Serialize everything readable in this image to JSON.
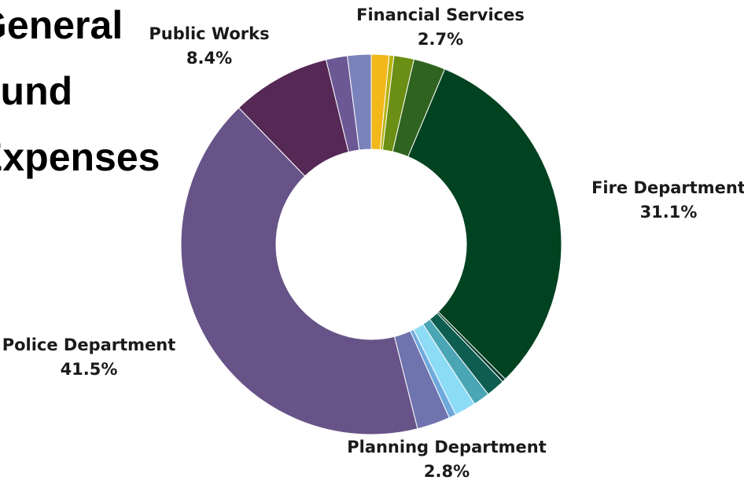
{
  "title": {
    "line1": "General",
    "line2": "Fund",
    "line3": "Expenses"
  },
  "chart_data": {
    "type": "pie",
    "title": "General Fund Expenses",
    "donut": true,
    "start_angle_deg": 0,
    "slices": [
      {
        "key": "s1",
        "label": "",
        "value": 1.5,
        "color": "#f2b81a"
      },
      {
        "key": "s2",
        "label": "",
        "value": 0.4,
        "color": "#b7b414"
      },
      {
        "key": "s3",
        "label": "",
        "value": 1.7,
        "color": "#6b8e14"
      },
      {
        "key": "financial",
        "label": "Financial Services",
        "value": 2.7,
        "color": "#2f6420"
      },
      {
        "key": "fire",
        "label": "Fire Department",
        "value": 31.1,
        "color": "#014220"
      },
      {
        "key": "s6",
        "label": "",
        "value": 0.3,
        "color": "#0a3d30"
      },
      {
        "key": "s7",
        "label": "",
        "value": 1.6,
        "color": "#0d5e50"
      },
      {
        "key": "s8",
        "label": "",
        "value": 1.4,
        "color": "#4aa6b4"
      },
      {
        "key": "s9",
        "label": "",
        "value": 1.8,
        "color": "#8ddcf6"
      },
      {
        "key": "s10",
        "label": "",
        "value": 0.6,
        "color": "#6fa8dc"
      },
      {
        "key": "planning",
        "label": "Planning Department",
        "value": 2.8,
        "color": "#6f74ae"
      },
      {
        "key": "police",
        "label": "Police Department",
        "value": 41.5,
        "color": "#675387"
      },
      {
        "key": "public",
        "label": "Public Works",
        "value": 8.4,
        "color": "#552855"
      },
      {
        "key": "s14",
        "label": "",
        "value": 1.8,
        "color": "#6c5894"
      },
      {
        "key": "s15",
        "label": "",
        "value": 2.0,
        "color": "#7a82bc"
      }
    ],
    "labels": {
      "financial": {
        "name": "Financial Services",
        "pct": "2.7%"
      },
      "fire": {
        "name": "Fire Department",
        "pct": "31.1%"
      },
      "planning": {
        "name": "Planning Department",
        "pct": "2.8%"
      },
      "police": {
        "name": "Police Department",
        "pct": "41.5%"
      },
      "public": {
        "name": "Public Works",
        "pct": "8.4%"
      }
    }
  }
}
